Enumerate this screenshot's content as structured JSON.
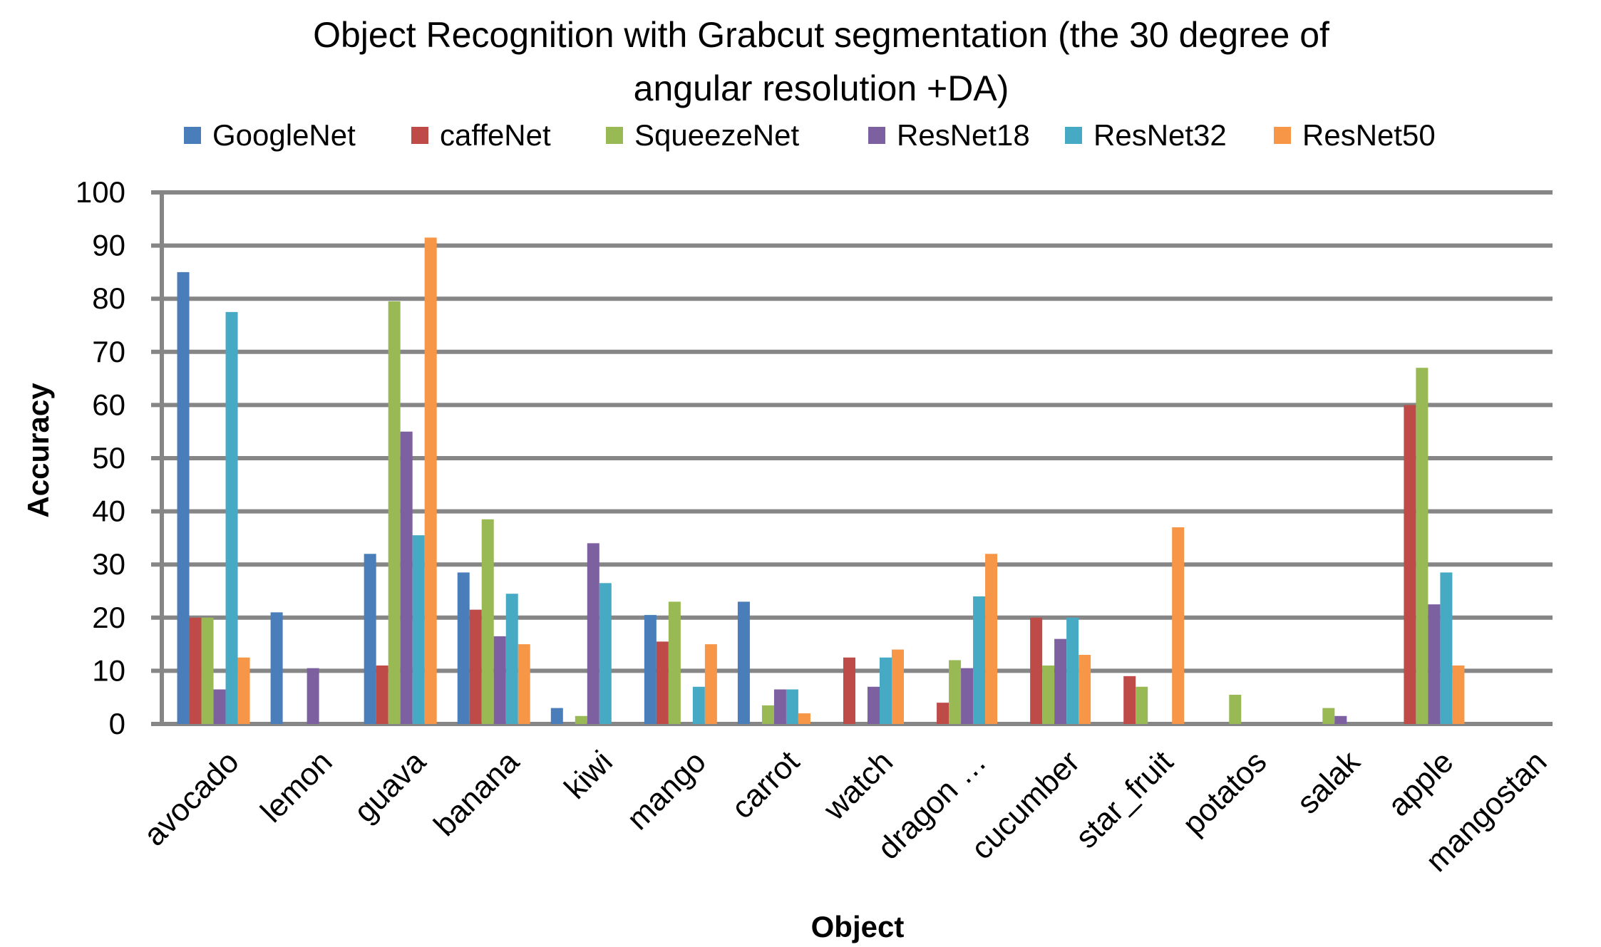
{
  "chart_data": {
    "type": "bar",
    "title_lines": [
      "Object Recognition with Grabcut segmentation (the 30 degree of",
      "angular resolution +DA)"
    ],
    "xlabel": "Object",
    "ylabel": "Accuracy",
    "ylim": [
      0,
      100
    ],
    "yticks": [
      0,
      10,
      20,
      30,
      40,
      50,
      60,
      70,
      80,
      90,
      100
    ],
    "grid": true,
    "legend_position": "top",
    "categories": [
      "avocado",
      "lemon",
      "guava",
      "banana",
      "kiwi",
      "mango",
      "carrot",
      "watch",
      "dragon …",
      "cucumber",
      "star_fruit",
      "potatos",
      "salak",
      "apple",
      "mangostan"
    ],
    "series": [
      {
        "name": "GoogleNet",
        "color": "#4A7EBB",
        "values": [
          85,
          21,
          32,
          28.5,
          3,
          20.5,
          23,
          0,
          0,
          0,
          0,
          0,
          0,
          0,
          0
        ]
      },
      {
        "name": "caffeNet",
        "color": "#BE4B48",
        "values": [
          20,
          0,
          11,
          21.5,
          0,
          15.5,
          0,
          12.5,
          4,
          20,
          9,
          0,
          0,
          60,
          0
        ]
      },
      {
        "name": "SqueezeNet",
        "color": "#98B954",
        "values": [
          20,
          0,
          79.5,
          38.5,
          1.5,
          23,
          3.5,
          0,
          12,
          11,
          7,
          5.5,
          3,
          67,
          0
        ]
      },
      {
        "name": "ResNet18",
        "color": "#7D60A0",
        "values": [
          6.5,
          10.5,
          55,
          16.5,
          34,
          0,
          6.5,
          7,
          10.5,
          16,
          0,
          0,
          1.5,
          22.5,
          0
        ]
      },
      {
        "name": "ResNet32",
        "color": "#46AAC5",
        "values": [
          77.5,
          0,
          35.5,
          24.5,
          26.5,
          7,
          6.5,
          12.5,
          24,
          20,
          0,
          0,
          0,
          28.5,
          0
        ]
      },
      {
        "name": "ResNet50",
        "color": "#F79646",
        "values": [
          12.5,
          0,
          91.5,
          15,
          0,
          15,
          2,
          14,
          32,
          13,
          37,
          0,
          0,
          11,
          0
        ]
      }
    ],
    "colors": {
      "grid": "#868686",
      "axis": "#868686"
    }
  }
}
